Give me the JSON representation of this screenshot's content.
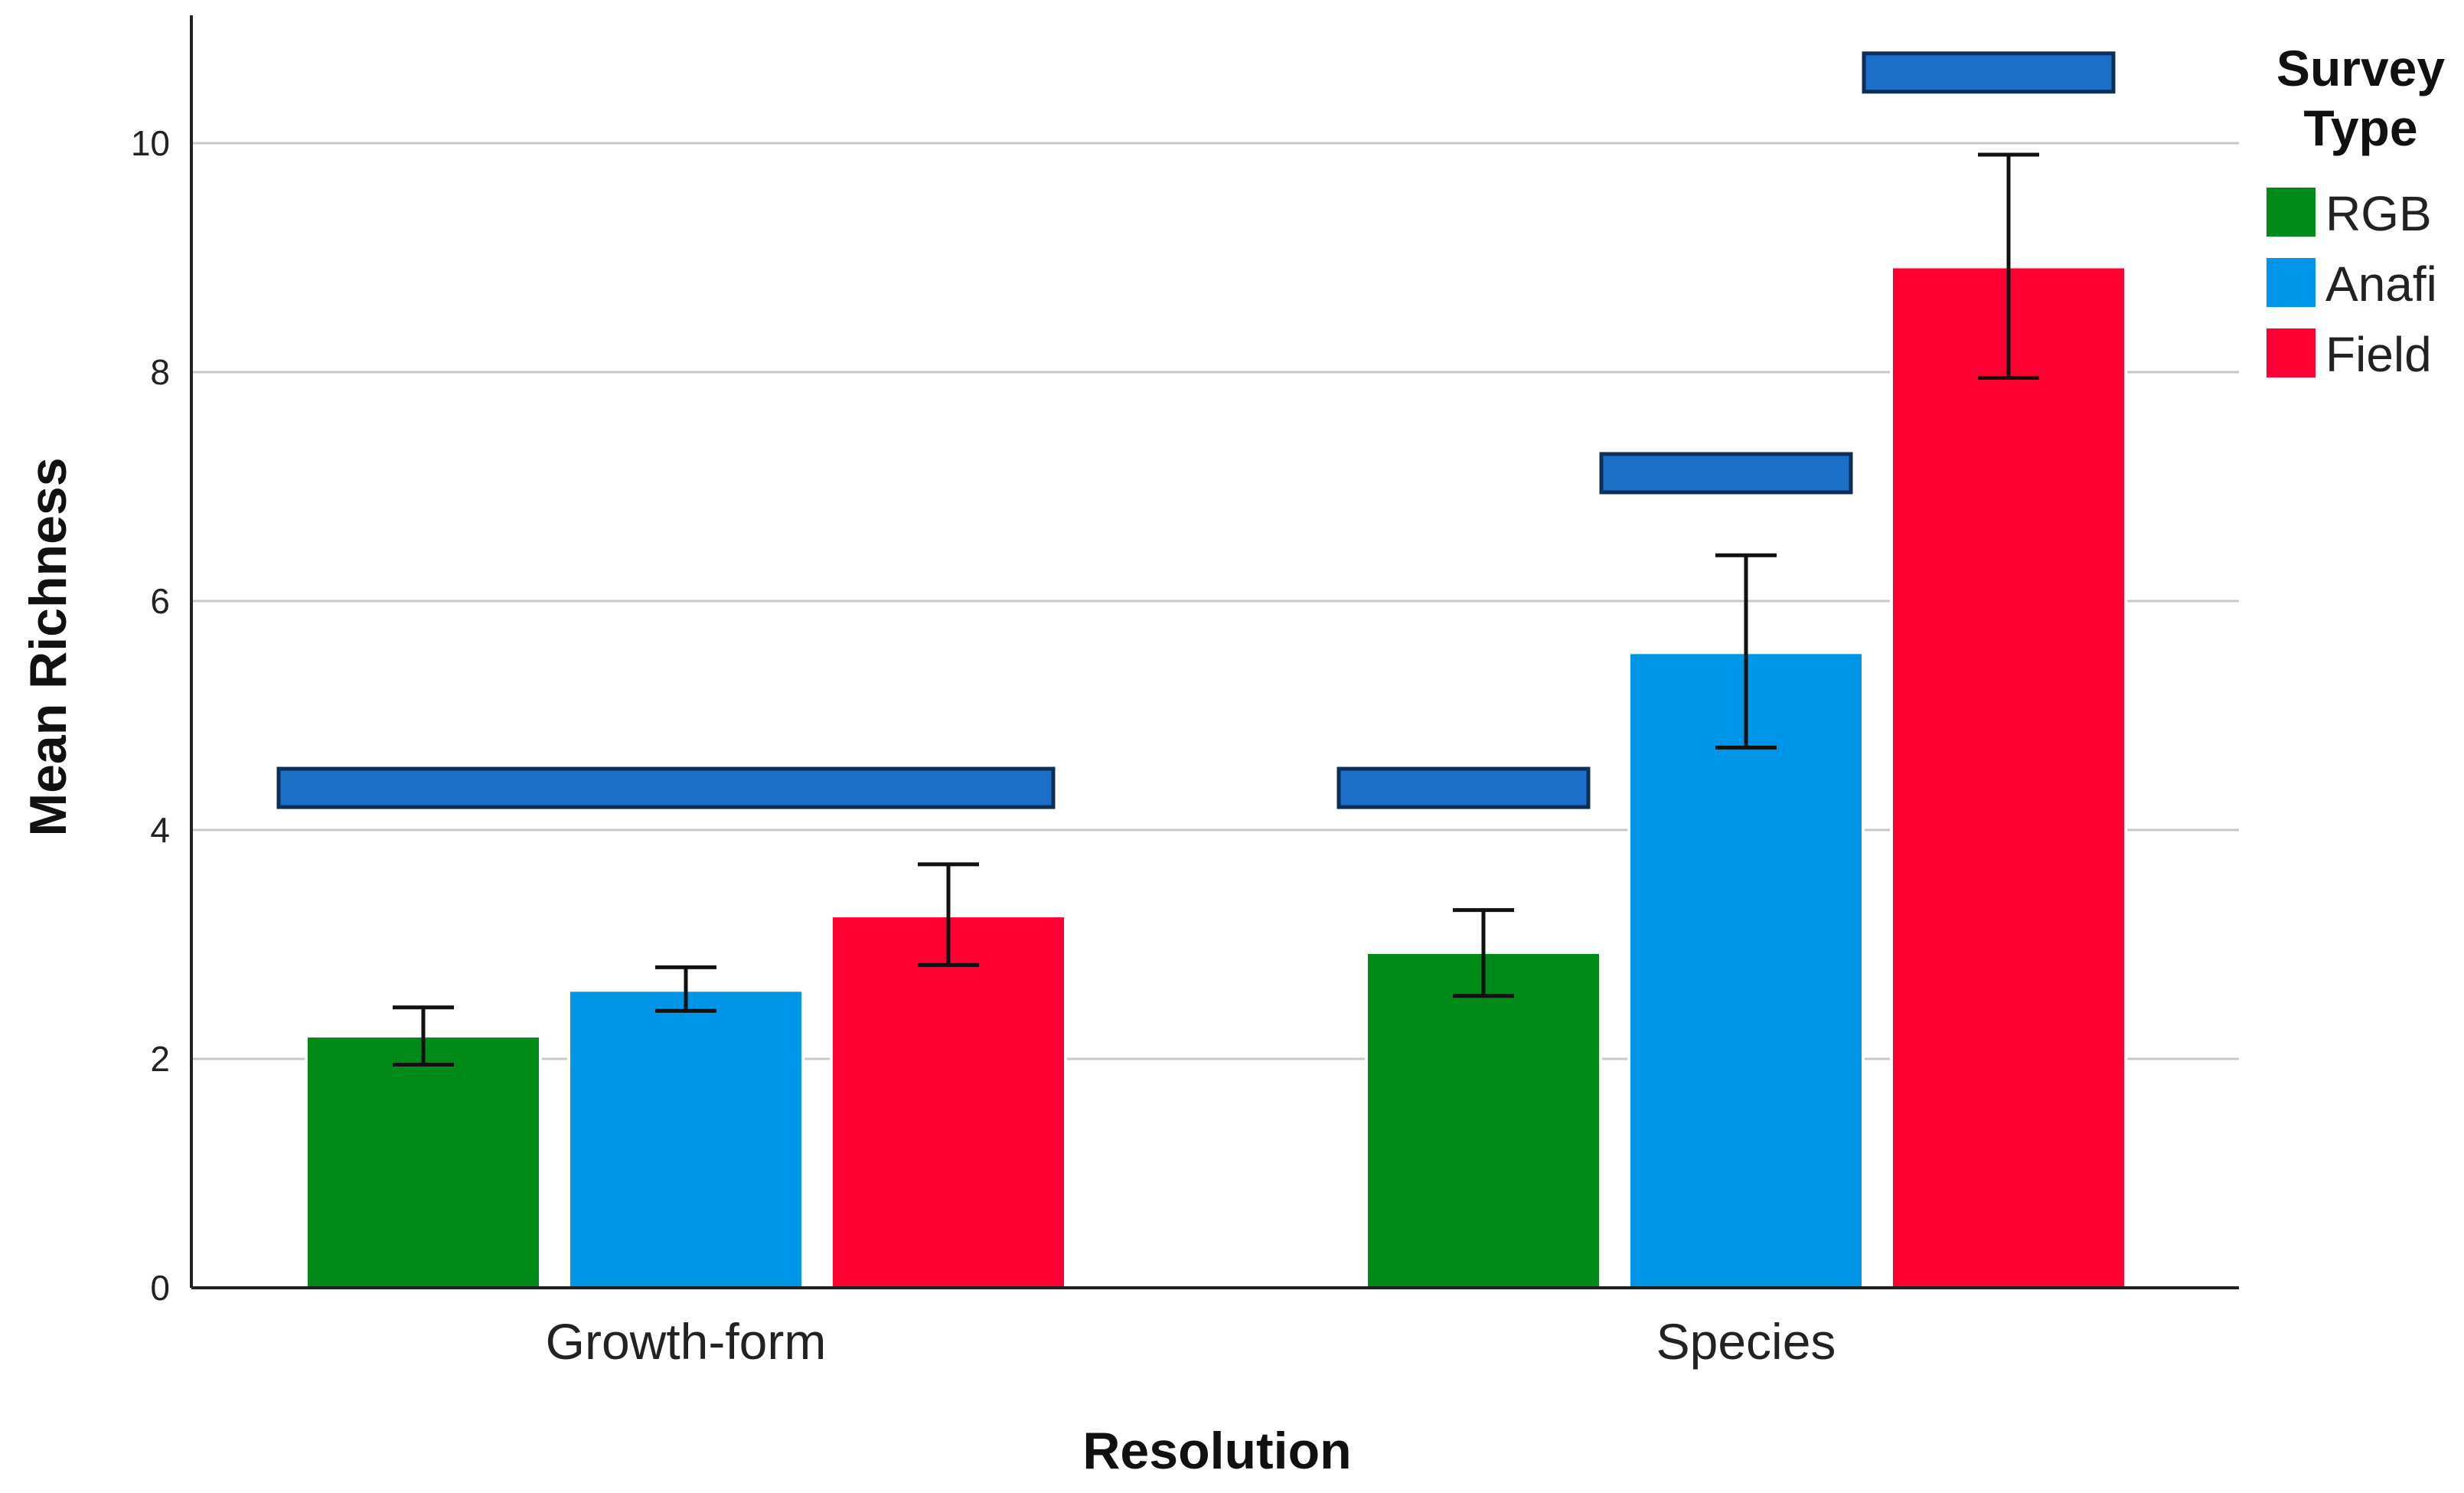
{
  "chart_data": {
    "type": "bar",
    "title": "",
    "xlabel": "Resolution",
    "ylabel": "Mean Richness",
    "ylim": [
      0,
      11
    ],
    "yticks": [
      0,
      2,
      4,
      6,
      8,
      10
    ],
    "grid": true,
    "categories": [
      "Growth-form",
      "Species"
    ],
    "legend": {
      "title": "Survey Type",
      "title_lines": [
        "Survey",
        "Type"
      ],
      "placement": "right"
    },
    "series": [
      {
        "name": "RGB",
        "color": "#008A17",
        "values": [
          2.2,
          2.93
        ],
        "err_low": [
          1.95,
          2.55
        ],
        "err_high": [
          2.45,
          3.3
        ]
      },
      {
        "name": "Anafi",
        "color": "#0096E8",
        "values": [
          2.6,
          5.55
        ],
        "err_low": [
          2.42,
          4.72
        ],
        "err_high": [
          2.8,
          6.4
        ]
      },
      {
        "name": "Field",
        "color": "#FF0033",
        "values": [
          3.25,
          8.92
        ],
        "err_low": [
          2.82,
          7.95
        ],
        "err_high": [
          3.7,
          9.9
        ]
      }
    ],
    "significance_brackets": [
      {
        "category": 0,
        "from_series": 0,
        "to_series": 2,
        "y": 4.2
      },
      {
        "category": 1,
        "from_series": 0,
        "to_series": 0,
        "y": 4.2
      },
      {
        "category": 1,
        "from_series": 1,
        "to_series": 1,
        "y": 6.95
      },
      {
        "category": 1,
        "from_series": 2,
        "to_series": 2,
        "y": 10.45
      }
    ],
    "bracket_color": "#1B6FC9"
  }
}
